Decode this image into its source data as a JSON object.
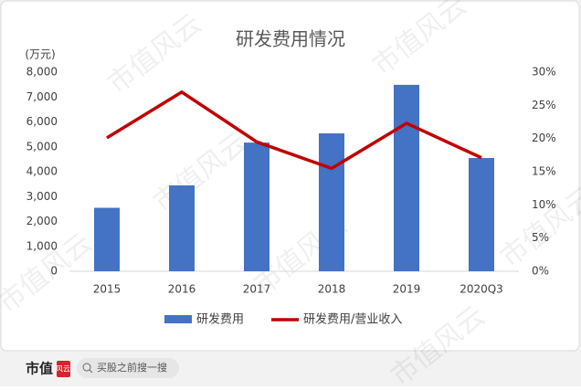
{
  "chart_data": {
    "type": "bar-line",
    "title": "研发费用情况",
    "y_axis_label": "(万元)",
    "categories": [
      "2015",
      "2016",
      "2017",
      "2018",
      "2019",
      "2020Q3"
    ],
    "series": [
      {
        "name": "研发费用",
        "type": "bar",
        "color": "#4472c4",
        "values": [
          2550,
          3450,
          5170,
          5540,
          7490,
          4550
        ]
      },
      {
        "name": "研发费用/营业收入",
        "type": "line",
        "color": "#c00000",
        "axis": "y2",
        "values": [
          20.1,
          27.0,
          19.5,
          15.5,
          22.3,
          17.1
        ]
      }
    ],
    "ylim": [
      0,
      8000
    ],
    "yticks": [
      0,
      {
        "value": 1000,
        "label": "1,000"
      },
      {
        "value": 2000,
        "label": "2,000"
      },
      {
        "value": 3000,
        "label": "3,000"
      },
      {
        "value": 4000,
        "label": "4,000"
      },
      {
        "value": 5000,
        "label": "5,000"
      },
      {
        "value": 6000,
        "label": "6,000"
      },
      {
        "value": 7000,
        "label": "7,000"
      },
      {
        "value": 8000,
        "label": "8,000"
      }
    ],
    "y2lim": [
      0,
      30
    ],
    "y2ticks": [
      {
        "value": 0,
        "label": "0%"
      },
      {
        "value": 5,
        "label": "5%"
      },
      {
        "value": 10,
        "label": "10%"
      },
      {
        "value": 15,
        "label": "15%"
      },
      {
        "value": 20,
        "label": "20%"
      },
      {
        "value": 25,
        "label": "25%"
      },
      {
        "value": 30,
        "label": "30%"
      }
    ],
    "grid": false,
    "legend": "bottom"
  },
  "watermark": "市值风云",
  "footer": {
    "brand": "市值",
    "brand_mark": "风云",
    "search_hint": "买股之前搜一搜"
  }
}
